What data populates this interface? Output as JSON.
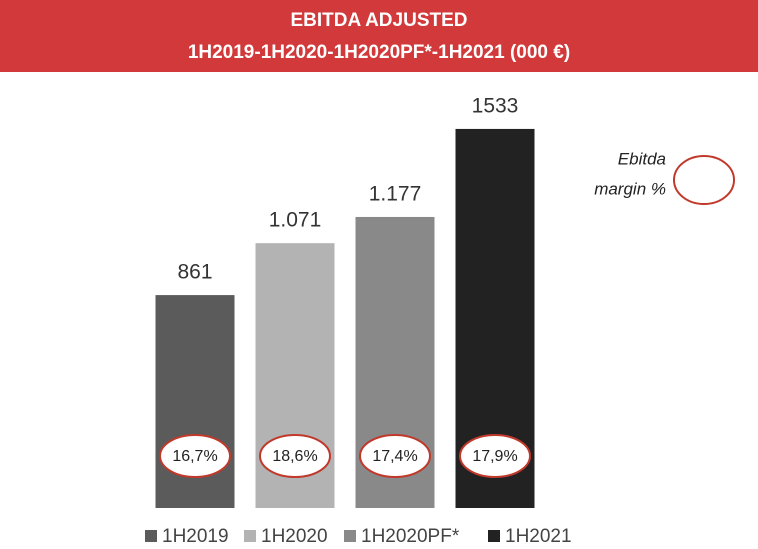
{
  "chart_data": {
    "type": "bar",
    "title": [
      "EBITDA ADJUSTED",
      "1H2019-1H2020-1H2020PF*-1H2021 (000 €)"
    ],
    "categories": [
      "1H2019",
      "1H2020",
      "1H2020PF*",
      "1H2021"
    ],
    "values": [
      861,
      1071,
      1177,
      1533
    ],
    "value_labels": [
      "861",
      "1.071",
      "1.177",
      "1533"
    ],
    "colors": [
      "#5b5b5b",
      "#b3b3b3",
      "#898989",
      "#222222"
    ],
    "margins": [
      16.7,
      18.6,
      17.4,
      17.9
    ],
    "margin_labels": [
      "16,7%",
      "18,6%",
      "17,4%",
      "17,9%"
    ],
    "annotation": [
      "Ebitda",
      "margin %"
    ],
    "ylim": [
      0,
      1650
    ]
  }
}
